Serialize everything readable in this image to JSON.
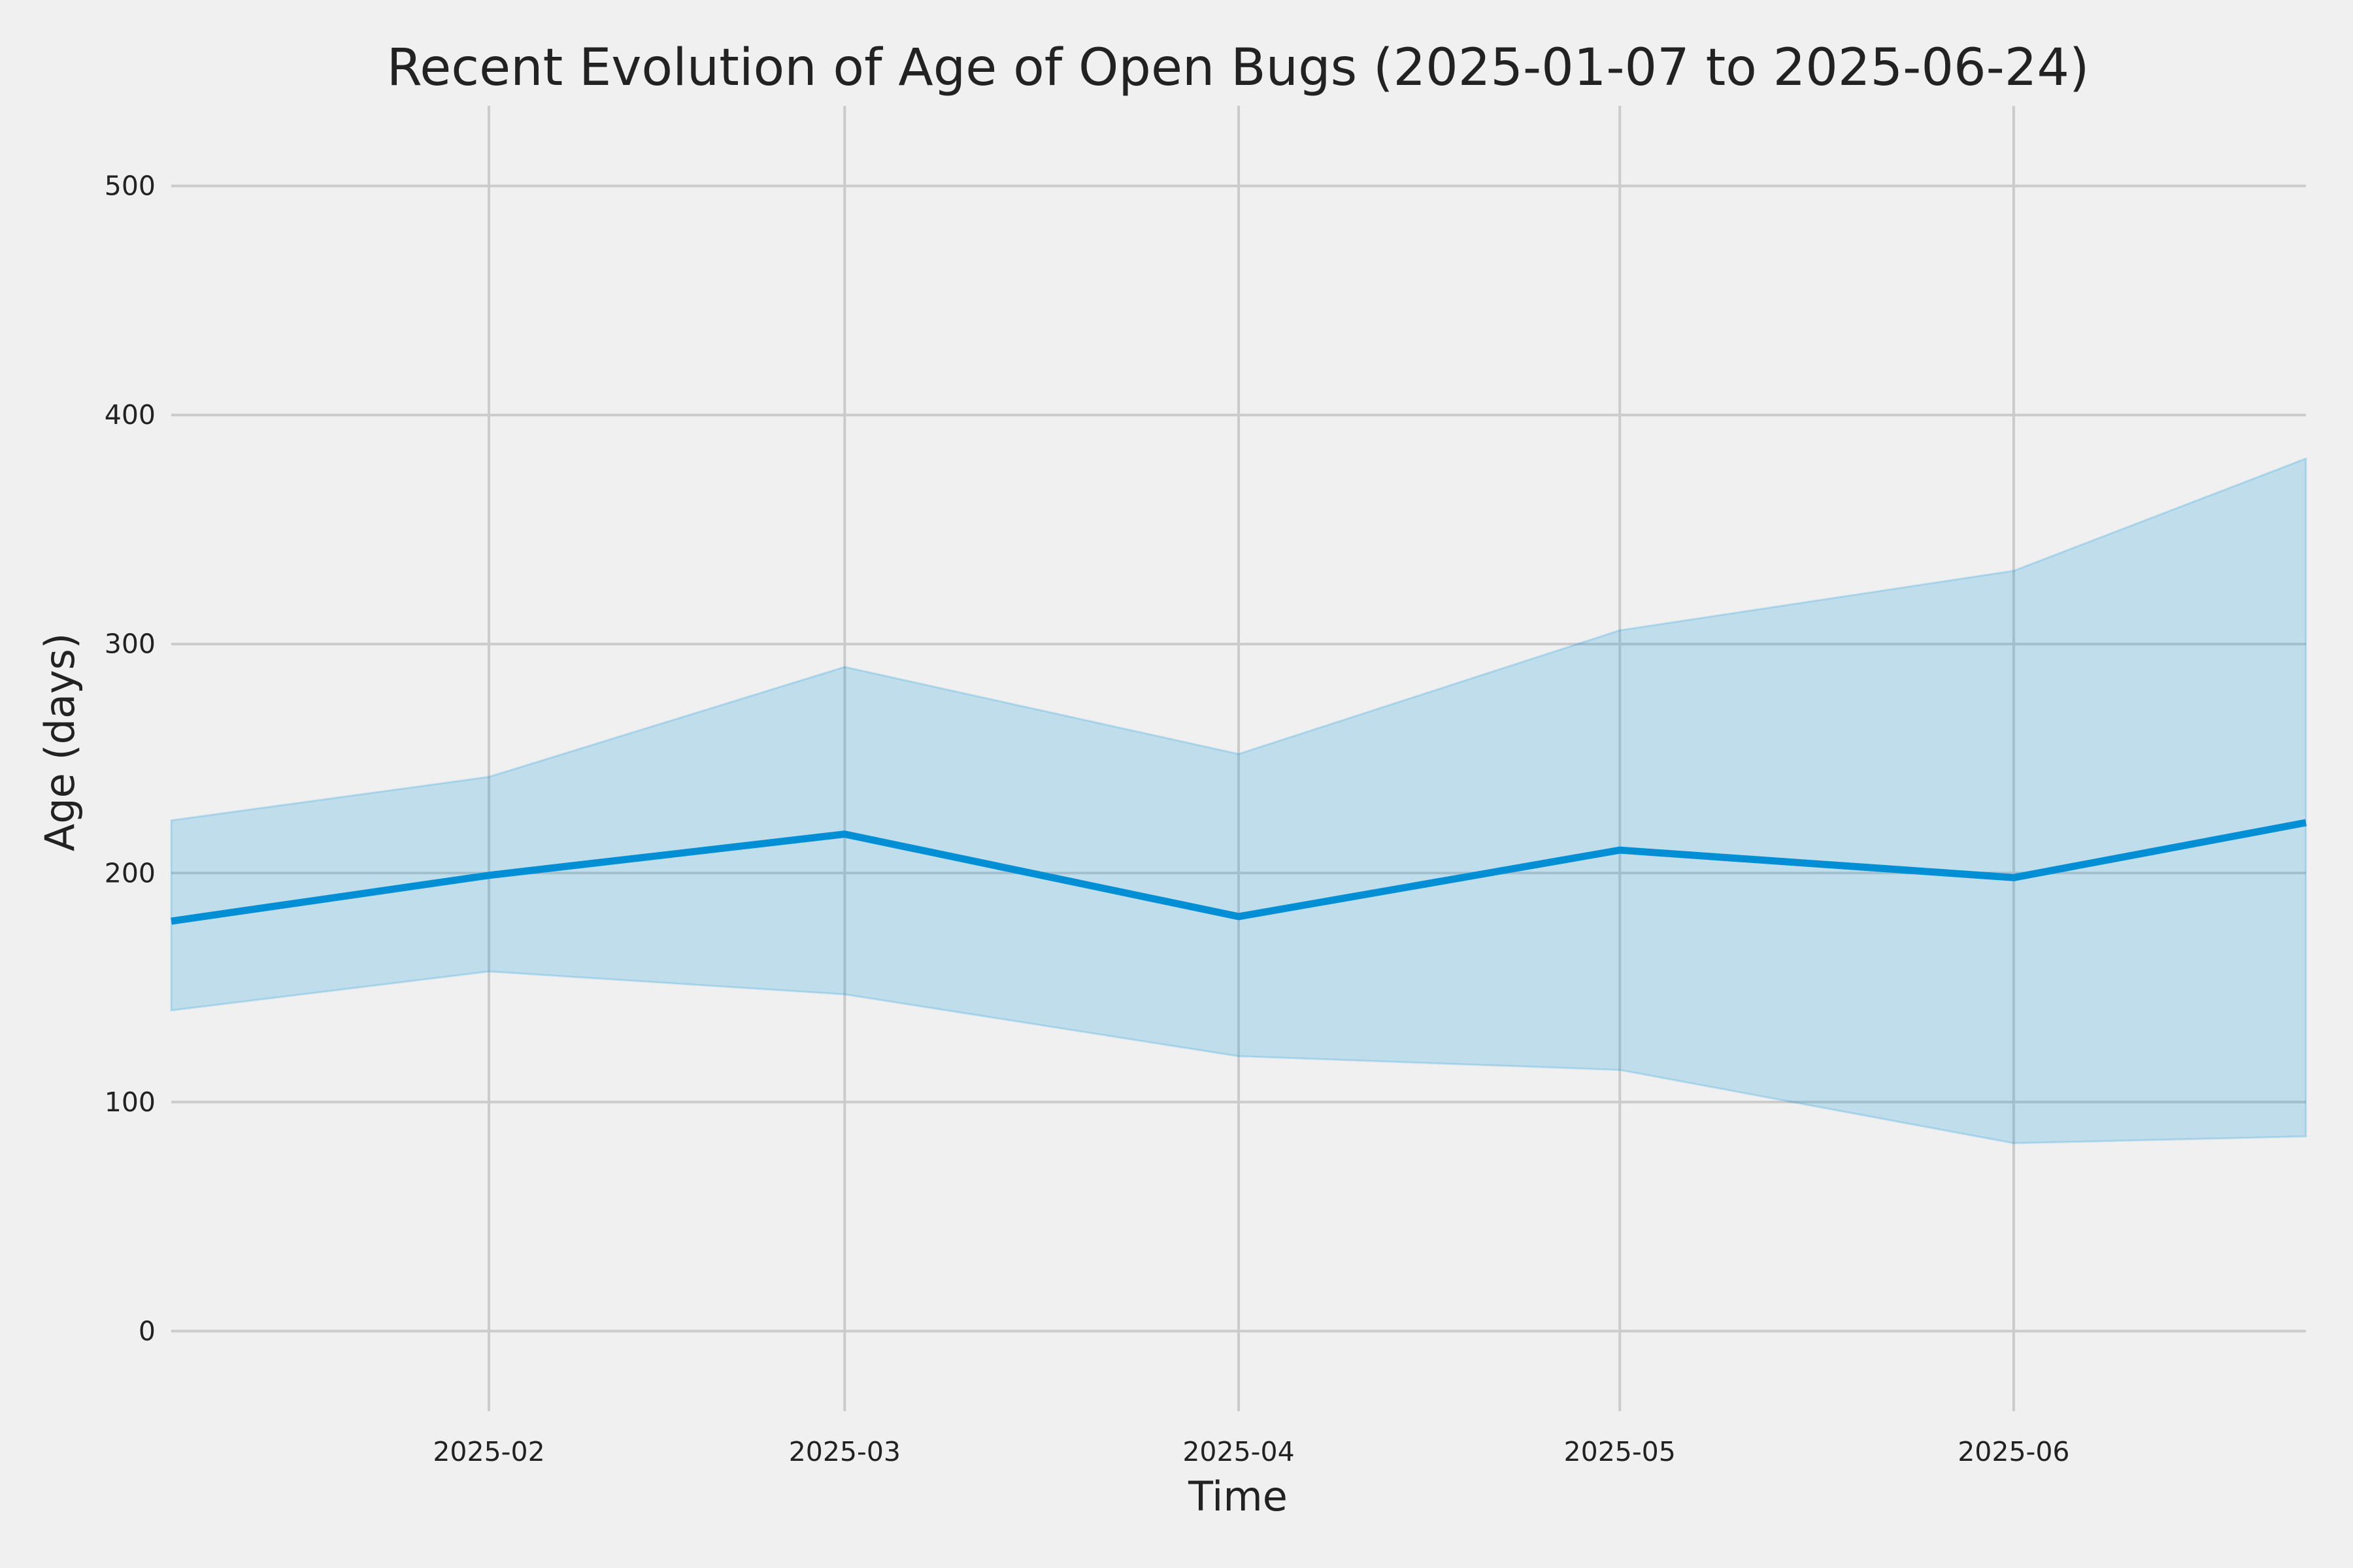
{
  "chart_data": {
    "type": "line",
    "title": "Recent Evolution of Age of Open Bugs (2025-01-07 to 2025-06-24)",
    "xlabel": "Time",
    "ylabel": "Age (days)",
    "x_range": [
      "2025-01-07",
      "2025-06-24"
    ],
    "ylim": [
      -35,
      535
    ],
    "yticks": [
      0,
      100,
      200,
      300,
      400,
      500
    ],
    "xticks": [
      "2025-02",
      "2025-03",
      "2025-04",
      "2025-05",
      "2025-06"
    ],
    "grid": true,
    "x": [
      "2025-01-07",
      "2025-02-01",
      "2025-03-01",
      "2025-04-01",
      "2025-05-01",
      "2025-06-01",
      "2025-06-24"
    ],
    "series": [
      {
        "values": [
          179,
          199,
          217,
          181,
          210,
          198,
          222
        ],
        "lower": [
          140,
          157,
          147,
          120,
          114,
          82,
          85
        ],
        "upper": [
          223,
          242,
          290,
          252,
          306,
          332,
          381
        ]
      }
    ],
    "colors": {
      "line": "#008fd5",
      "band": "#008fd5",
      "band_opacity": 0.2,
      "background": "#f0f0f0",
      "grid": "#cbcbcb"
    }
  }
}
